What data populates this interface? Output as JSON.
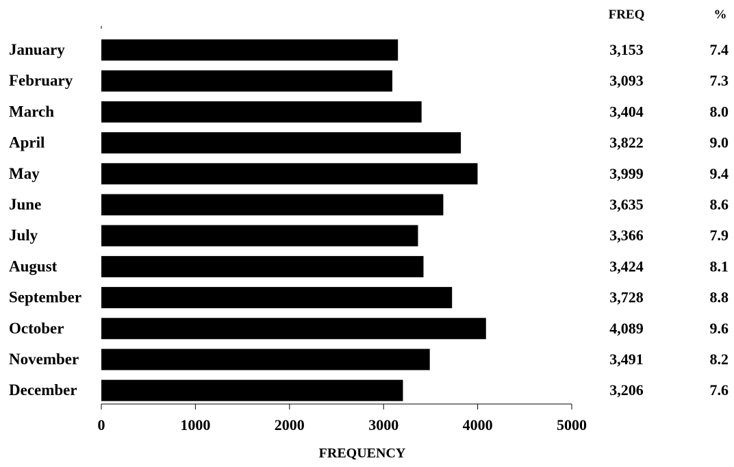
{
  "chart_data": {
    "type": "bar",
    "orientation": "horizontal",
    "categories": [
      "January",
      "February",
      "March",
      "April",
      "May",
      "June",
      "July",
      "August",
      "September",
      "October",
      "November",
      "December"
    ],
    "values": [
      3153,
      3093,
      3404,
      3822,
      3999,
      3635,
      3366,
      3424,
      3728,
      4089,
      3491,
      3206
    ],
    "freq_labels": [
      "3,153",
      "3,093",
      "3,404",
      "3,822",
      "3,999",
      "3,635",
      "3,366",
      "3,424",
      "3,728",
      "4,089",
      "3,491",
      "3,206"
    ],
    "percent_labels": [
      "7.4",
      "7.3",
      "8.0",
      "9.0",
      "9.4",
      "8.6",
      "7.9",
      "8.1",
      "8.8",
      "9.6",
      "8.2",
      "7.6"
    ],
    "freq_header": "FREQ",
    "percent_header": "%",
    "xlabel": "FREQUENCY",
    "ylabel": "",
    "title": "",
    "xlim": [
      0,
      5000
    ],
    "xticks": [
      0,
      1000,
      2000,
      3000,
      4000,
      5000
    ],
    "bar_color": "#000000",
    "grid": false,
    "legend": "none"
  }
}
